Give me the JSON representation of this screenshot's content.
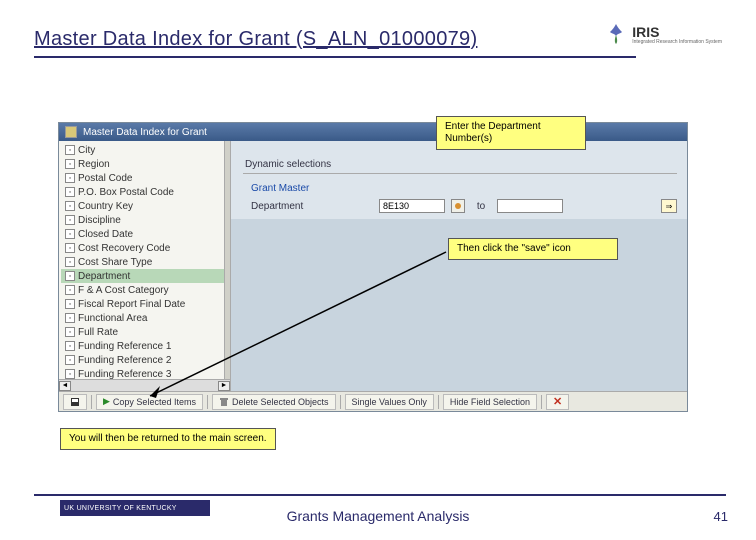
{
  "title": "Master Data Index for Grant (S_ALN_01000079)",
  "iris": {
    "name": "IRIS",
    "sub": "Integrated Research Information System"
  },
  "sap": {
    "window_title": "Master Data Index for Grant",
    "tree_items": [
      {
        "label": "City",
        "selected": false
      },
      {
        "label": "Region",
        "selected": false
      },
      {
        "label": "Postal Code",
        "selected": false
      },
      {
        "label": "P.O. Box Postal Code",
        "selected": false
      },
      {
        "label": "Country Key",
        "selected": false
      },
      {
        "label": "Discipline",
        "selected": false
      },
      {
        "label": "Closed Date",
        "selected": false
      },
      {
        "label": "Cost Recovery Code",
        "selected": false
      },
      {
        "label": "Cost Share Type",
        "selected": false
      },
      {
        "label": "Department",
        "selected": true
      },
      {
        "label": "F & A Cost Category",
        "selected": false
      },
      {
        "label": "Fiscal Report Final Date",
        "selected": false
      },
      {
        "label": "Functional Area",
        "selected": false
      },
      {
        "label": "Full Rate",
        "selected": false
      },
      {
        "label": "Funding Reference 1",
        "selected": false
      },
      {
        "label": "Funding Reference 2",
        "selected": false
      },
      {
        "label": "Funding Reference 3",
        "selected": false
      }
    ],
    "dynamic_selections": "Dynamic selections",
    "grant_master": "Grant Master",
    "department_label": "Department",
    "department_value": "8E130",
    "to_label": "to",
    "toolbar": {
      "copy": "Copy Selected Items",
      "delete": "Delete Selected Objects",
      "single": "Single Values Only",
      "hide": "Hide Field Selection"
    }
  },
  "callouts": {
    "c1": "Enter the Department Number(s)",
    "c2": "Then click the \"save\" icon",
    "c3": "You will then be returned to the main screen."
  },
  "footer": {
    "logo": "UK UNIVERSITY OF KENTUCKY",
    "center": "Grants Management Analysis",
    "page": "41"
  },
  "colors": {
    "accent": "#2a2a6a",
    "callout_bg": "#ffff80",
    "sap_bg": "#e8eef3"
  }
}
